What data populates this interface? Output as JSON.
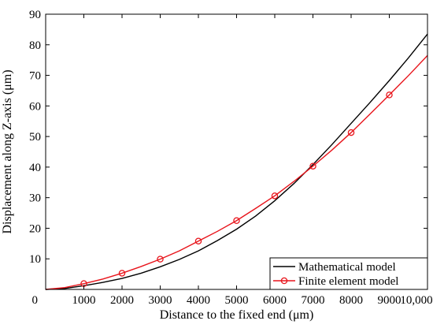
{
  "chart_data": {
    "type": "line",
    "title": "",
    "xlabel": "Distance to the fixed end (μm)",
    "ylabel": "Displacement along Z-axis (μm)",
    "xlim": [
      0,
      10000
    ],
    "ylim": [
      0,
      90
    ],
    "x_ticks": [
      0,
      1000,
      2000,
      3000,
      4000,
      5000,
      6000,
      7000,
      8000,
      9000,
      10000
    ],
    "x_tick_labels": [
      "0",
      "1000",
      "2000",
      "3000",
      "4000",
      "5000",
      "6000",
      "7000",
      "8000",
      "9000",
      "10,000"
    ],
    "y_ticks": [
      10,
      20,
      30,
      40,
      50,
      60,
      70,
      80,
      90
    ],
    "y_tick_labels": [
      "10",
      "20",
      "30",
      "40",
      "50",
      "60",
      "70",
      "80",
      "90"
    ],
    "grid": false,
    "legend_position": "bottom-right",
    "series": [
      {
        "name": "Mathematical model",
        "color": "#000000",
        "marker": "none",
        "x": [
          0,
          500,
          1000,
          1500,
          2000,
          2500,
          3000,
          3500,
          4000,
          4500,
          5000,
          5500,
          6000,
          6500,
          7000,
          7500,
          8000,
          8500,
          9000,
          9500,
          10000
        ],
        "y": [
          0,
          0.3,
          1.2,
          2.3,
          3.6,
          5.3,
          7.4,
          9.8,
          12.6,
          16.0,
          19.7,
          24.0,
          29.0,
          34.6,
          40.8,
          47.4,
          54.3,
          61.2,
          68.3,
          75.7,
          83.5
        ]
      },
      {
        "name": "Finite element model",
        "color": "#e8141b",
        "marker": "circle",
        "x": [
          0,
          500,
          1000,
          1500,
          2000,
          2500,
          3000,
          3500,
          4000,
          4500,
          5000,
          5500,
          6000,
          6500,
          7000,
          7500,
          8000,
          8500,
          9000,
          9500,
          10000
        ],
        "y": [
          0,
          0.6,
          1.9,
          3.4,
          5.3,
          7.5,
          9.9,
          12.6,
          15.8,
          19.0,
          22.5,
          26.5,
          30.6,
          35.3,
          40.3,
          45.6,
          51.3,
          57.4,
          63.6,
          69.9,
          76.5
        ],
        "marker_x": [
          1000,
          2000,
          3000,
          4000,
          5000,
          6000,
          7000,
          8000,
          9000
        ],
        "marker_y": [
          1.9,
          5.3,
          9.9,
          15.8,
          22.5,
          30.6,
          40.3,
          51.3,
          63.6
        ]
      }
    ]
  }
}
